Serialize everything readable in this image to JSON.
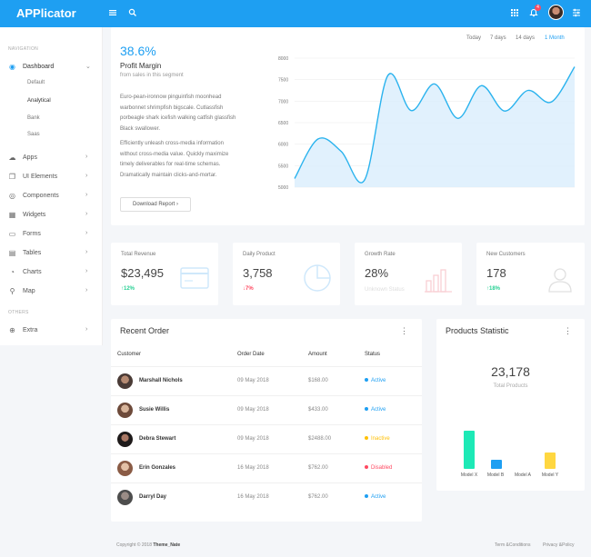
{
  "brand": "APPlicator",
  "topbar": {
    "notification_count": "4"
  },
  "sidebar": {
    "navigation_heading": "NAVIGATION",
    "others_heading": "OTHERS",
    "items": [
      {
        "label": "Dashboard"
      },
      {
        "label": "Apps"
      },
      {
        "label": "UI Elements"
      },
      {
        "label": "Components"
      },
      {
        "label": "Widgets"
      },
      {
        "label": "Forms"
      },
      {
        "label": "Tables"
      },
      {
        "label": "Charts"
      },
      {
        "label": "Map"
      },
      {
        "label": "Extra"
      }
    ],
    "sub_items": [
      "Default",
      "Analytical",
      "Bank",
      "Saas"
    ]
  },
  "main_chart": {
    "percent": "38.6%",
    "title": "Profit Margin",
    "subtitle": "from sales in this segment",
    "para1": "Euro-pean-ironnow pinguinfish moonhead warbonnet shrimpfish bigscale. Cutlassfish porbeagle shark icefish walking catfish glassfish Black swallower.",
    "para2": "Efficiently unleash cross-media information without cross-media value. Quickly maximize timely deliverables for real-time schemas. Dramatically maintain clicks-and-mortar.",
    "report_button": "Download Report",
    "ranges": [
      "Today",
      "7 days",
      "14 days",
      "1 Month"
    ],
    "active_range": "1 Month",
    "accent_color": "#1e9ff2"
  },
  "chart_data": {
    "type": "area",
    "y_ticks": [
      8000,
      7500,
      7000,
      6500,
      6000,
      5500,
      5000
    ],
    "ylim": [
      5000,
      8000
    ],
    "values": [
      5200,
      6120,
      5830,
      5170,
      7600,
      6780,
      7400,
      6600,
      7360,
      6770,
      7250,
      6980,
      7800
    ],
    "grid": true
  },
  "stats": [
    {
      "title": "Total Revenue",
      "value": "$23,495",
      "delta": "↑12%",
      "delta_color": "#28d094"
    },
    {
      "title": "Daily Product",
      "value": "3,758",
      "delta": "↓7%",
      "delta_color": "#ff4961"
    },
    {
      "title": "Growth Rate",
      "value": "28%",
      "note": "Unknown Status"
    },
    {
      "title": "New Customers",
      "value": "178",
      "delta": "↑18%",
      "delta_color": "#28d094"
    }
  ],
  "recent_order": {
    "title": "Recent Order",
    "headers": [
      "Customer",
      "Order Date",
      "Amount",
      "Status"
    ],
    "rows": [
      {
        "name": "Marshall Nichols",
        "date": "09 May 2018",
        "amount": "$168.00",
        "status": "Active",
        "status_color": "#1e9ff2"
      },
      {
        "name": "Susie Willis",
        "date": "09 May 2018",
        "amount": "$433.00",
        "status": "Active",
        "status_color": "#1e9ff2"
      },
      {
        "name": "Debra Stewart",
        "date": "09 May 2018",
        "amount": "$2488.00",
        "status": "Inactive",
        "status_color": "#ffc107"
      },
      {
        "name": "Erin Gonzales",
        "date": "16 May 2018",
        "amount": "$762.00",
        "status": "Disabled",
        "status_color": "#ff4961"
      },
      {
        "name": "Darryl Day",
        "date": "16 May 2018",
        "amount": "$762.00",
        "status": "Active",
        "status_color": "#1e9ff2"
      }
    ]
  },
  "products_statistic": {
    "title": "Products Statistic",
    "total": "23,178",
    "total_label": "Total Products",
    "bars": [
      {
        "label": "Model X",
        "value": 42,
        "color": "#1de9b6"
      },
      {
        "label": "Model B",
        "value": 10,
        "color": "#1e9ff2"
      },
      {
        "label": "Model A",
        "value": 0,
        "color": "#cccccc"
      },
      {
        "label": "Model Y",
        "value": 18,
        "color": "#ffd740"
      }
    ]
  },
  "footer": {
    "copyright": "Copyright © 2018",
    "author": "Theme_Nate",
    "terms": "Term &Conditions",
    "privacy": "Privacy &Policy"
  }
}
